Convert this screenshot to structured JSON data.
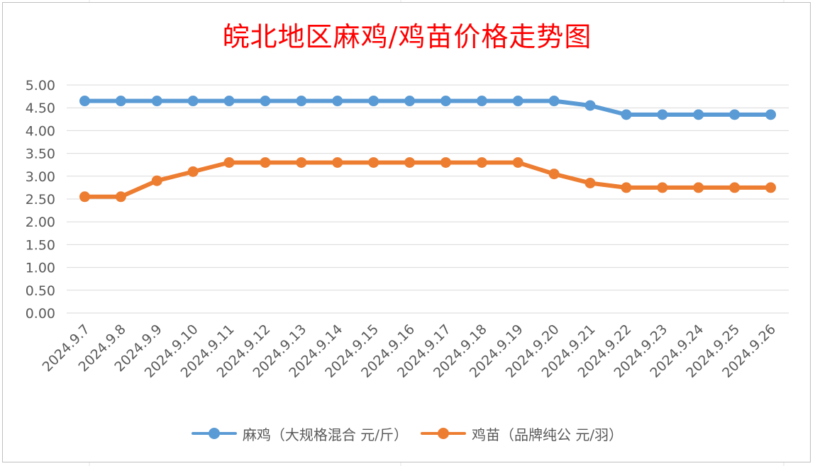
{
  "chart_data": {
    "type": "line",
    "title": "皖北地区麻鸡/鸡苗价格走势图",
    "xlabel": "",
    "ylabel": "",
    "categories": [
      "2024.9.7",
      "2024.9.8",
      "2024.9.9",
      "2024.9.10",
      "2024.9.11",
      "2024.9.12",
      "2024.9.13",
      "2024.9.14",
      "2024.9.15",
      "2024.9.16",
      "2024.9.17",
      "2024.9.18",
      "2024.9.19",
      "2024.9.20",
      "2024.9.21",
      "2024.9.22",
      "2024.9.23",
      "2024.9.24",
      "2024.9.25",
      "2024.9.26"
    ],
    "y_ticks": [
      "5.00",
      "4.50",
      "4.00",
      "3.50",
      "3.00",
      "2.50",
      "2.00",
      "1.50",
      "1.00",
      "0.50",
      "0.00"
    ],
    "ylim": [
      0,
      5
    ],
    "grid": true,
    "legend_position": "bottom",
    "series": [
      {
        "name": "麻鸡（大规格混合 元/斤）",
        "color": "#5b9bd5",
        "values": [
          4.65,
          4.65,
          4.65,
          4.65,
          4.65,
          4.65,
          4.65,
          4.65,
          4.65,
          4.65,
          4.65,
          4.65,
          4.65,
          4.65,
          4.55,
          4.35,
          4.35,
          4.35,
          4.35,
          4.35
        ]
      },
      {
        "name": "鸡苗（品牌纯公 元/羽）",
        "color": "#ed7d31",
        "values": [
          2.55,
          2.55,
          2.9,
          3.1,
          3.3,
          3.3,
          3.3,
          3.3,
          3.3,
          3.3,
          3.3,
          3.3,
          3.3,
          3.05,
          2.85,
          2.75,
          2.75,
          2.75,
          2.75,
          2.75
        ]
      }
    ]
  }
}
